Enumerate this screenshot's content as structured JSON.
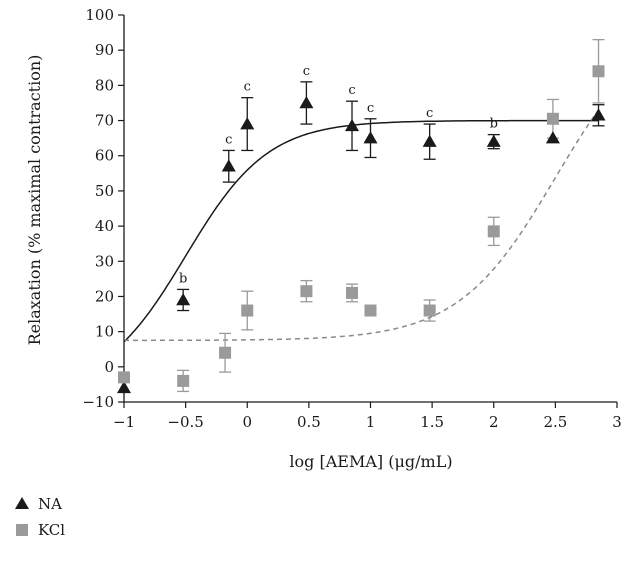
{
  "chart_data": {
    "type": "scatter",
    "title": "",
    "xlabel": "log [AEMA] (μg/mL)",
    "ylabel": "Relaxation (% maximal contraction)",
    "xlim": [
      -1,
      3
    ],
    "ylim": [
      -10,
      100
    ],
    "xticks": [
      -1,
      -0.5,
      0,
      0.5,
      1,
      1.5,
      2,
      2.5,
      3
    ],
    "xtick_labels": [
      "−1",
      "−0.5",
      "0",
      "0.5",
      "1",
      "1.5",
      "2",
      "2.5",
      "3"
    ],
    "yticks": [
      -10,
      0,
      10,
      20,
      30,
      40,
      50,
      60,
      70,
      80,
      90,
      100
    ],
    "ytick_labels": [
      "−10",
      "0",
      "10",
      "20",
      "30",
      "40",
      "50",
      "60",
      "70",
      "80",
      "90",
      "100"
    ],
    "grid": false,
    "legend": "bottom-left, below plot",
    "series": [
      {
        "name": "NA",
        "marker": "triangle",
        "color": "#1a1a1a",
        "fit_line": "solid",
        "fit": {
          "bottom": -7,
          "top": 70,
          "logEC50": -0.5,
          "hill": 1.3
        },
        "points": [
          {
            "x": -1.0,
            "y": -6,
            "err": 0,
            "sig": ""
          },
          {
            "x": -0.52,
            "y": 19,
            "err": 3,
            "sig": "b"
          },
          {
            "x": -0.15,
            "y": 57,
            "err": 4.5,
            "sig": "c"
          },
          {
            "x": 0.0,
            "y": 69,
            "err": 7.5,
            "sig": "c"
          },
          {
            "x": 0.48,
            "y": 75,
            "err": 6,
            "sig": "c"
          },
          {
            "x": 0.85,
            "y": 68.5,
            "err": 7,
            "sig": "c"
          },
          {
            "x": 1.0,
            "y": 65,
            "err": 5.5,
            "sig": "c"
          },
          {
            "x": 1.48,
            "y": 64,
            "err": 5,
            "sig": "c"
          },
          {
            "x": 2.0,
            "y": 64,
            "err": 2,
            "sig": "b"
          },
          {
            "x": 2.48,
            "y": 65,
            "err": 0,
            "sig": ""
          },
          {
            "x": 2.85,
            "y": 71.5,
            "err": 3,
            "sig": ""
          }
        ]
      },
      {
        "name": "KCl",
        "marker": "square",
        "color": "#9a9a9a",
        "fit_line": "dashed",
        "fit": {
          "bottom": 7.5,
          "top": 100,
          "logEC50": 2.5,
          "hill": 1.1
        },
        "points": [
          {
            "x": -1.0,
            "y": -3,
            "err": 0
          },
          {
            "x": -0.52,
            "y": -4,
            "err": 3
          },
          {
            "x": -0.18,
            "y": 4,
            "err": 5.5
          },
          {
            "x": 0.0,
            "y": 16,
            "err": 5.5
          },
          {
            "x": 0.48,
            "y": 21.5,
            "err": 3
          },
          {
            "x": 0.85,
            "y": 21,
            "err": 2.5
          },
          {
            "x": 1.0,
            "y": 16,
            "err": 1.5
          },
          {
            "x": 1.48,
            "y": 16,
            "err": 3
          },
          {
            "x": 2.0,
            "y": 38.5,
            "err": 4
          },
          {
            "x": 2.48,
            "y": 70.5,
            "err": 5.5
          },
          {
            "x": 2.85,
            "y": 84,
            "err": 9
          }
        ]
      }
    ]
  }
}
